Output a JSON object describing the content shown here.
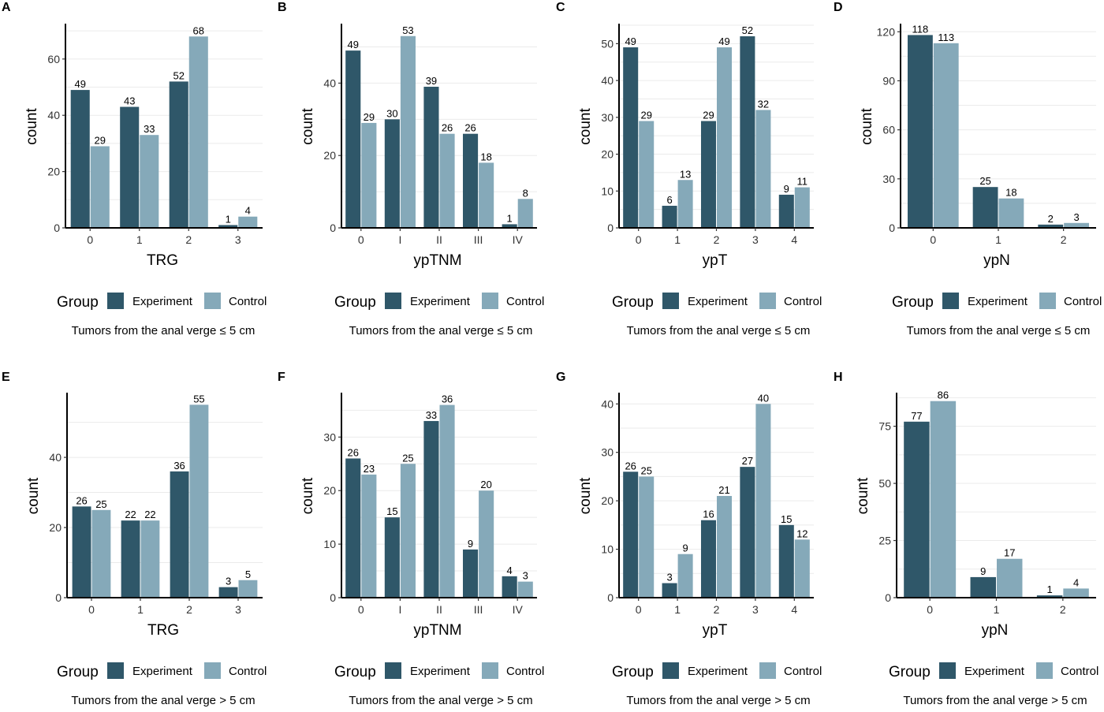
{
  "colors": {
    "experiment": "#2f5769",
    "control": "#85a9b9",
    "grid": "#ebebeb",
    "axis": "#000000"
  },
  "legend": {
    "title": "Group",
    "experiment_label": "Experiment",
    "control_label": "Control"
  },
  "chart_data": [
    {
      "type": "bar",
      "panel": "A",
      "xlabel": "TRG",
      "ylabel": "count",
      "categories": [
        "0",
        "1",
        "2",
        "3"
      ],
      "series": [
        {
          "name": "Experiment",
          "values": [
            49,
            43,
            52,
            1
          ]
        },
        {
          "name": "Control",
          "values": [
            29,
            33,
            68,
            4
          ]
        }
      ],
      "ylim": [
        0,
        72
      ],
      "yticks": [
        0,
        20,
        40,
        60
      ],
      "grid": true,
      "legend_position": "bottom",
      "caption": "Tumors from the anal verge ≤ 5 cm"
    },
    {
      "type": "bar",
      "panel": "B",
      "xlabel": "ypTNM",
      "ylabel": "count",
      "categories": [
        "0",
        "I",
        "II",
        "III",
        "IV"
      ],
      "series": [
        {
          "name": "Experiment",
          "values": [
            49,
            30,
            39,
            26,
            1
          ]
        },
        {
          "name": "Control",
          "values": [
            29,
            53,
            26,
            18,
            8
          ]
        }
      ],
      "ylim": [
        0,
        56
      ],
      "yticks": [
        0,
        20,
        40
      ],
      "grid": true,
      "legend_position": "bottom",
      "caption": "Tumors from the anal verge ≤ 5 cm"
    },
    {
      "type": "bar",
      "panel": "C",
      "xlabel": "ypT",
      "ylabel": "count",
      "categories": [
        "0",
        "1",
        "2",
        "3",
        "4"
      ],
      "series": [
        {
          "name": "Experiment",
          "values": [
            49,
            6,
            29,
            52,
            9
          ]
        },
        {
          "name": "Control",
          "values": [
            29,
            13,
            49,
            32,
            11
          ]
        }
      ],
      "ylim": [
        0,
        55
      ],
      "yticks": [
        0,
        10,
        20,
        30,
        40,
        50
      ],
      "grid": true,
      "legend_position": "bottom",
      "caption": "Tumors from the anal verge ≤ 5 cm"
    },
    {
      "type": "bar",
      "panel": "D",
      "xlabel": "ypN",
      "ylabel": "count",
      "categories": [
        "0",
        "1",
        "2"
      ],
      "series": [
        {
          "name": "Experiment",
          "values": [
            118,
            25,
            2
          ]
        },
        {
          "name": "Control",
          "values": [
            113,
            18,
            3
          ]
        }
      ],
      "ylim": [
        0,
        124
      ],
      "yticks": [
        0,
        30,
        60,
        90,
        120
      ],
      "grid": true,
      "legend_position": "bottom",
      "caption": "Tumors from the anal verge ≤ 5 cm"
    },
    {
      "type": "bar",
      "panel": "E",
      "xlabel": "TRG",
      "ylabel": "count",
      "categories": [
        "0",
        "1",
        "2",
        "3"
      ],
      "series": [
        {
          "name": "Experiment",
          "values": [
            26,
            22,
            36,
            3
          ]
        },
        {
          "name": "Control",
          "values": [
            25,
            22,
            55,
            5
          ]
        }
      ],
      "ylim": [
        0,
        58
      ],
      "yticks": [
        0,
        20,
        40
      ],
      "grid": true,
      "legend_position": "bottom",
      "caption": "Tumors from the anal verge > 5 cm"
    },
    {
      "type": "bar",
      "panel": "F",
      "xlabel": "ypTNM",
      "ylabel": "count",
      "categories": [
        "0",
        "I",
        "II",
        "III",
        "IV"
      ],
      "series": [
        {
          "name": "Experiment",
          "values": [
            26,
            15,
            33,
            9,
            4
          ]
        },
        {
          "name": "Control",
          "values": [
            23,
            25,
            36,
            20,
            3
          ]
        }
      ],
      "ylim": [
        0,
        38
      ],
      "yticks": [
        0,
        10,
        20,
        30
      ],
      "grid": true,
      "legend_position": "bottom",
      "caption": "Tumors from the anal verge > 5 cm"
    },
    {
      "type": "bar",
      "panel": "G",
      "xlabel": "ypT",
      "ylabel": "count",
      "categories": [
        "0",
        "1",
        "2",
        "3",
        "4"
      ],
      "series": [
        {
          "name": "Experiment",
          "values": [
            26,
            3,
            16,
            27,
            15
          ]
        },
        {
          "name": "Control",
          "values": [
            25,
            9,
            21,
            40,
            12
          ]
        }
      ],
      "ylim": [
        0,
        42
      ],
      "yticks": [
        0,
        10,
        20,
        30,
        40
      ],
      "grid": true,
      "legend_position": "bottom",
      "caption": "Tumors from the anal verge > 5 cm"
    },
    {
      "type": "bar",
      "panel": "H",
      "xlabel": "ypN",
      "ylabel": "count",
      "categories": [
        "0",
        "1",
        "2"
      ],
      "series": [
        {
          "name": "Experiment",
          "values": [
            77,
            9,
            1
          ]
        },
        {
          "name": "Control",
          "values": [
            86,
            17,
            4
          ]
        }
      ],
      "ylim": [
        0,
        89
      ],
      "yticks": [
        0,
        25,
        50,
        75
      ],
      "grid": true,
      "legend_position": "bottom",
      "caption": "Tumors from the anal verge > 5 cm"
    }
  ]
}
